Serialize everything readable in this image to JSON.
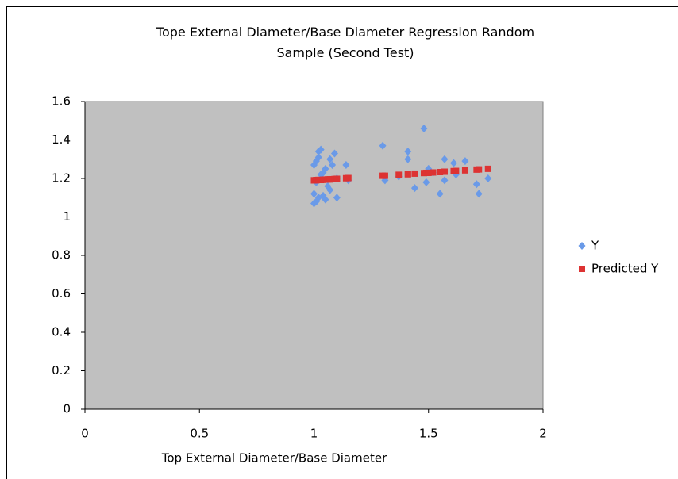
{
  "chart_data": {
    "type": "scatter",
    "title": "Tope External Diameter/Base Diameter Regression Random Sample (Second Test)",
    "x_label": "Top External Diameter/Base Diameter",
    "x": [
      1.0,
      1.0,
      1.0,
      1.01,
      1.01,
      1.01,
      1.02,
      1.02,
      1.02,
      1.03,
      1.03,
      1.04,
      1.04,
      1.05,
      1.05,
      1.06,
      1.07,
      1.07,
      1.08,
      1.09,
      1.1,
      1.1,
      1.14,
      1.15,
      1.3,
      1.31,
      1.37,
      1.41,
      1.41,
      1.44,
      1.48,
      1.49,
      1.5,
      1.52,
      1.55,
      1.57,
      1.57,
      1.61,
      1.62,
      1.66,
      1.71,
      1.72,
      1.76
    ],
    "series": [
      {
        "name": "Y",
        "color": "#6a9ae8",
        "marker": "diamond",
        "values": [
          1.07,
          1.12,
          1.27,
          1.29,
          1.18,
          1.08,
          1.34,
          1.1,
          1.31,
          1.35,
          1.22,
          1.23,
          1.11,
          1.25,
          1.09,
          1.16,
          1.14,
          1.3,
          1.27,
          1.33,
          1.1,
          1.2,
          1.27,
          1.19,
          1.37,
          1.19,
          1.21,
          1.34,
          1.3,
          1.15,
          1.46,
          1.18,
          1.25,
          1.23,
          1.12,
          1.19,
          1.3,
          1.28,
          1.22,
          1.29,
          1.17,
          1.12,
          1.2
        ]
      },
      {
        "name": "Predicted Y",
        "color": "#dd3333",
        "marker": "square",
        "values": [
          1.19,
          1.19,
          1.19,
          1.191,
          1.191,
          1.191,
          1.192,
          1.192,
          1.192,
          1.192,
          1.192,
          1.193,
          1.193,
          1.194,
          1.194,
          1.195,
          1.195,
          1.195,
          1.196,
          1.197,
          1.198,
          1.198,
          1.201,
          1.202,
          1.214,
          1.214,
          1.219,
          1.222,
          1.222,
          1.225,
          1.228,
          1.229,
          1.229,
          1.231,
          1.233,
          1.235,
          1.235,
          1.238,
          1.239,
          1.242,
          1.246,
          1.247,
          1.25
        ]
      }
    ],
    "xlim": [
      0,
      2
    ],
    "xticks": [
      0,
      0.5,
      1,
      1.5,
      2
    ],
    "ylim": [
      0,
      1.6
    ],
    "yticks": [
      0,
      0.2,
      0.4,
      0.6,
      0.8,
      1,
      1.2,
      1.4,
      1.6
    ],
    "plot_background": "#c0c0c0",
    "legend": "right"
  }
}
